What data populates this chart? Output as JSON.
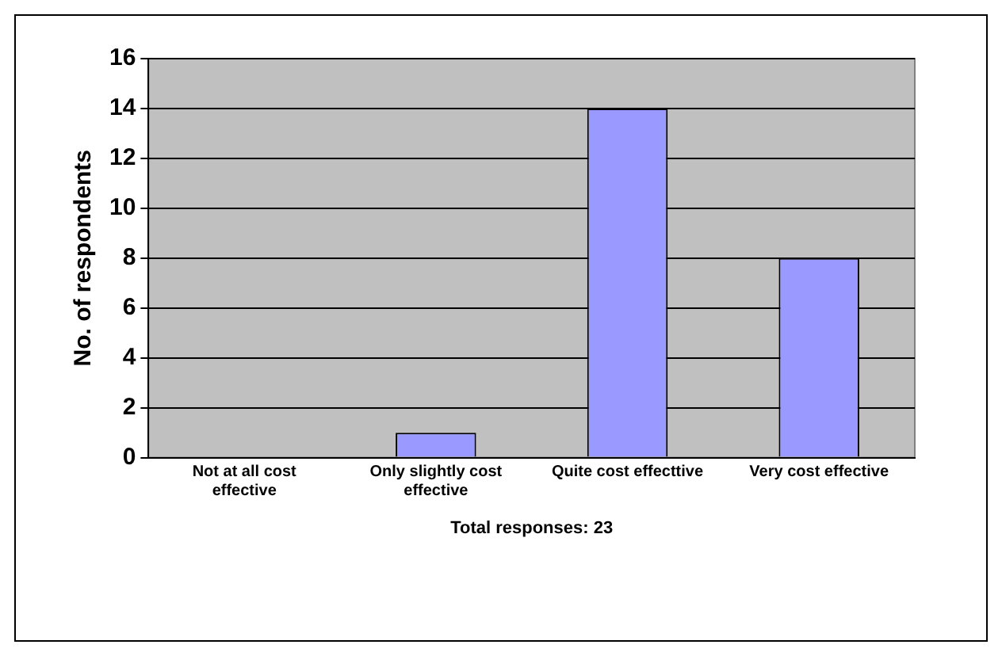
{
  "chart_data": {
    "type": "bar",
    "categories": [
      "Not at all cost effective",
      "Only slightly cost effective",
      "Quite cost effecttive",
      "Very cost effective"
    ],
    "values": [
      0,
      1,
      14,
      8
    ],
    "color": "#9999ff",
    "ylabel": "No. of respondents",
    "xlabel": "Total responses: 23",
    "ylim": [
      0,
      16
    ],
    "yticks": [
      0,
      2,
      4,
      6,
      8,
      10,
      12,
      14,
      16
    ],
    "grid": "y",
    "legend": false
  }
}
